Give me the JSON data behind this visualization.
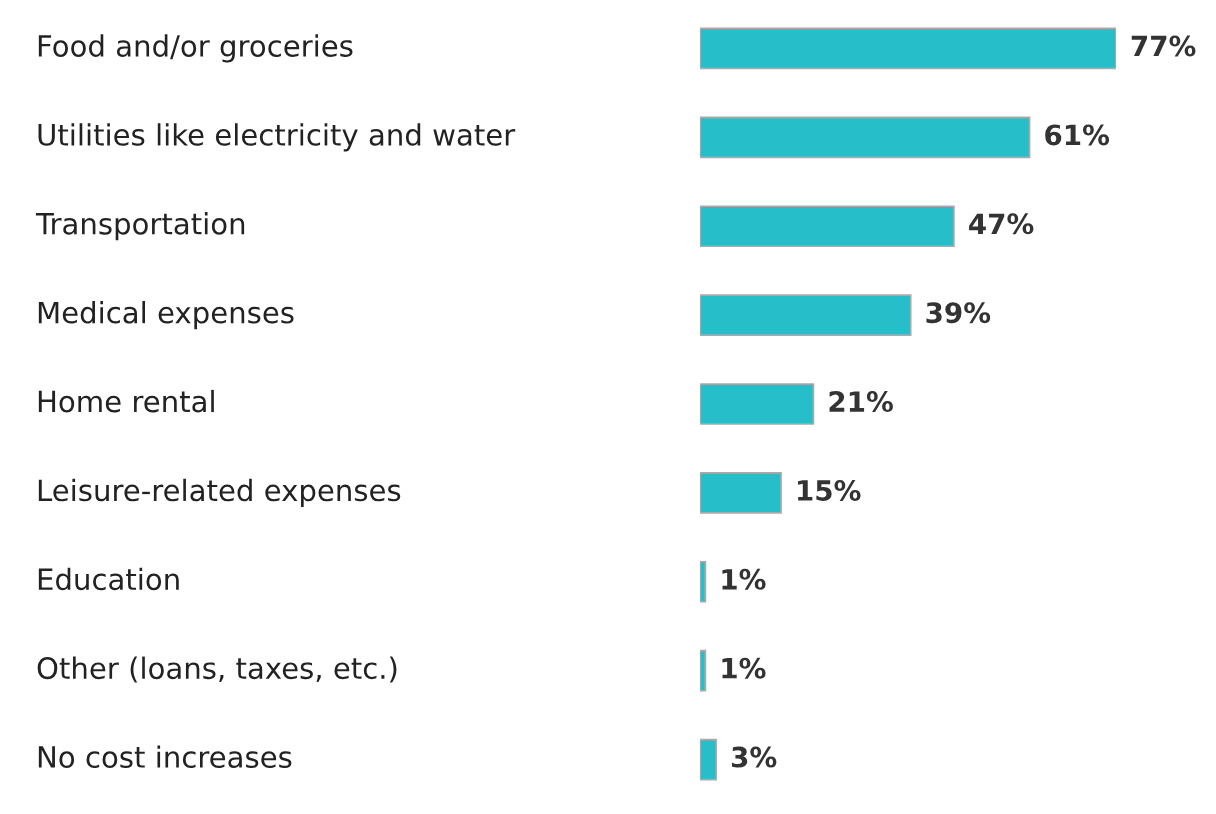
{
  "chart_data": {
    "type": "bar",
    "orientation": "horizontal",
    "categories": [
      "Food and/or groceries",
      "Utilities like electricity and water",
      "Transportation",
      "Medical expenses",
      "Home rental",
      "Leisure-related expenses",
      "Education",
      "Other (loans, taxes, etc.)",
      "No cost increases"
    ],
    "values": [
      77,
      61,
      47,
      39,
      21,
      15,
      1,
      1,
      3
    ],
    "value_labels": [
      "77%",
      "61%",
      "47%",
      "39%",
      "21%",
      "15%",
      "1%",
      "1%",
      "3%"
    ],
    "color": "#26bfc9"
  }
}
